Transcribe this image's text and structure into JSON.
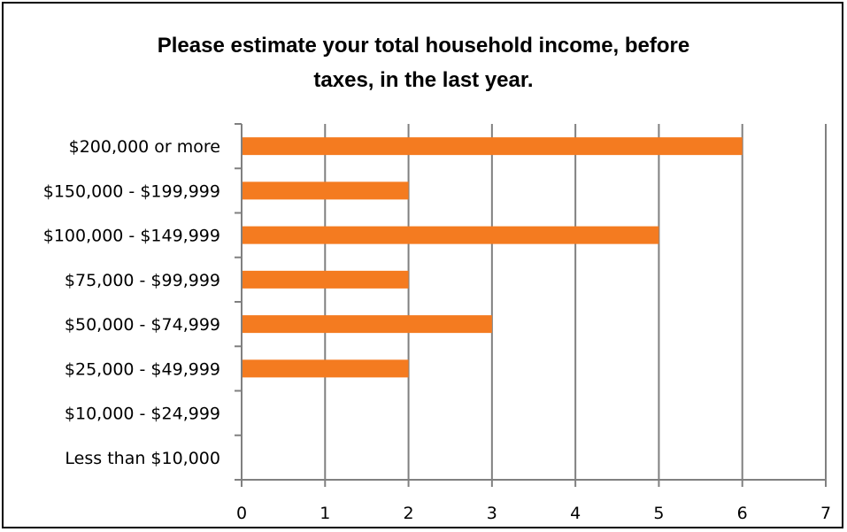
{
  "chart_data": {
    "type": "bar",
    "orientation": "horizontal",
    "title": "Please estimate your total household income, before taxes, in the last year.",
    "title_lines": [
      "Please estimate your total household income, before",
      "taxes, in the last year."
    ],
    "categories": [
      "$200,000 or more",
      "$150,000 - $199,999",
      "$100,000 - $149,999",
      "$75,000 - $99,999",
      "$50,000 - $74,999",
      "$25,000 - $49,999",
      "$10,000 - $24,999",
      "Less than $10,000"
    ],
    "values": [
      6,
      2,
      5,
      2,
      3,
      2,
      0,
      0
    ],
    "xlim": [
      0,
      7
    ],
    "xticks": [
      "0",
      "1",
      "2",
      "3",
      "4",
      "5",
      "6",
      "7"
    ],
    "xlabel": "",
    "ylabel": "",
    "grid": "vertical",
    "legend": "none",
    "bar_color": "#F47B20",
    "grid_color": "#808080"
  }
}
